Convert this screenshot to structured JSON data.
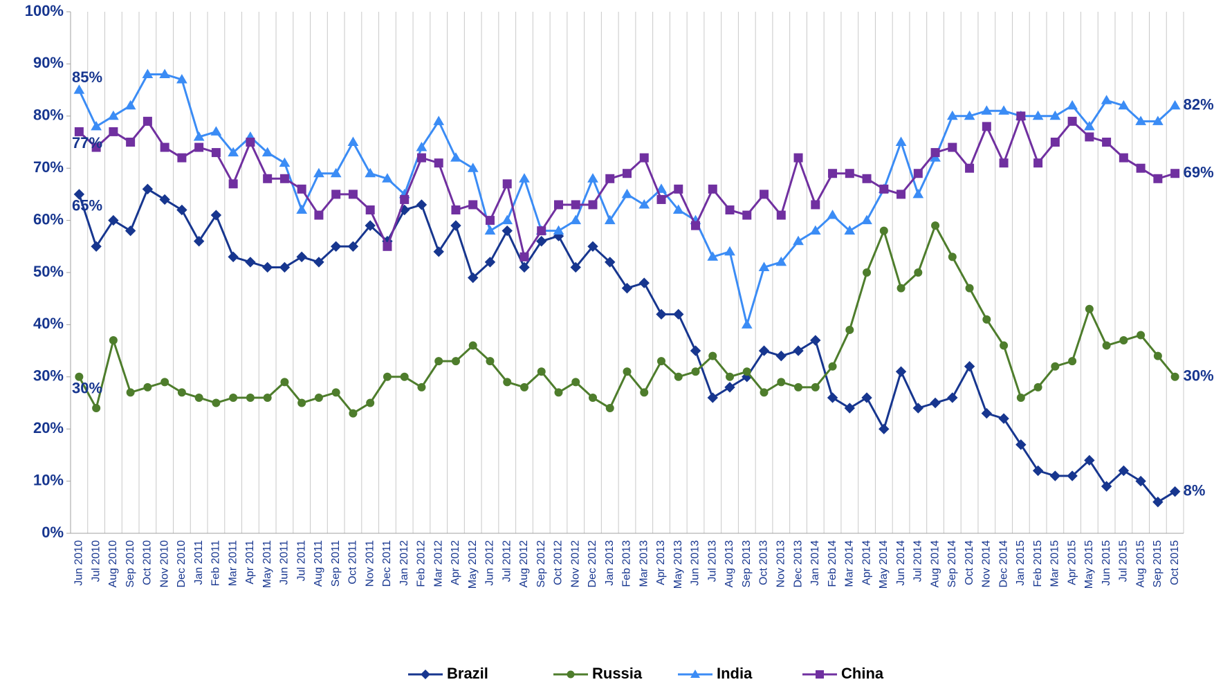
{
  "chart_data": {
    "type": "line",
    "categories": [
      "Jun 2010",
      "Jul 2010",
      "Aug 2010",
      "Sep 2010",
      "Oct 2010",
      "Nov 2010",
      "Dec 2010",
      "Jan 2011",
      "Feb 2011",
      "Mar 2011",
      "Apr 2011",
      "May 2011",
      "Jun 2011",
      "Jul 2011",
      "Aug 2011",
      "Sep 2011",
      "Oct 2011",
      "Nov 2011",
      "Dec 2011",
      "Jan 2012",
      "Feb 2012",
      "Mar 2012",
      "Apr 2012",
      "May 2012",
      "Jun 2012",
      "Jul 2012",
      "Aug 2012",
      "Sep 2012",
      "Oct 2012",
      "Nov 2012",
      "Dec 2012",
      "Jan 2013",
      "Feb 2013",
      "Mar 2013",
      "Apr 2013",
      "May 2013",
      "Jun 2013",
      "Jul 2013",
      "Aug 2013",
      "Sep 2013",
      "Oct 2013",
      "Nov 2013",
      "Dec 2013",
      "Jan 2014",
      "Feb 2014",
      "Mar 2014",
      "Apr 2014",
      "May 2014",
      "Jun 2014",
      "Jul 2014",
      "Aug 2014",
      "Sep 2014",
      "Oct 2014",
      "Nov 2014",
      "Dec 2014",
      "Jan 2015",
      "Feb 2015",
      "Mar 2015",
      "Apr 2015",
      "May 2015",
      "Jun 2015",
      "Jul 2015",
      "Aug 2015",
      "Sep 2015",
      "Oct 2015"
    ],
    "series": [
      {
        "name": "Brazil",
        "color": "#17368f",
        "marker": "diamond",
        "values": [
          65,
          55,
          60,
          58,
          66,
          64,
          62,
          56,
          61,
          53,
          52,
          51,
          51,
          53,
          52,
          55,
          55,
          59,
          56,
          62,
          63,
          54,
          59,
          49,
          52,
          58,
          51,
          56,
          57,
          51,
          55,
          52,
          47,
          48,
          42,
          42,
          35,
          26,
          28,
          30,
          35,
          34,
          35,
          37,
          26,
          24,
          26,
          20,
          31,
          24,
          25,
          26,
          32,
          23,
          22,
          17,
          12,
          11,
          11,
          14,
          9,
          12,
          10,
          6,
          8
        ],
        "value_labels": [
          "65%",
          null,
          null,
          null,
          null,
          null,
          null,
          null,
          null,
          null,
          null,
          null,
          null,
          null,
          null,
          null,
          null,
          null,
          null,
          null,
          null,
          null,
          null,
          null,
          null,
          null,
          null,
          null,
          null,
          null,
          null,
          null,
          null,
          null,
          null,
          null,
          null,
          null,
          null,
          null,
          null,
          null,
          null,
          null,
          null,
          null,
          null,
          null,
          null,
          null,
          null,
          null,
          null,
          null,
          null,
          null,
          null,
          null,
          null,
          null,
          null,
          null,
          null,
          null,
          "8%"
        ]
      },
      {
        "name": "Russia",
        "color": "#4e7d2c",
        "marker": "circle",
        "values": [
          30,
          24,
          37,
          27,
          28,
          29,
          27,
          26,
          25,
          26,
          26,
          26,
          29,
          25,
          26,
          27,
          23,
          25,
          30,
          30,
          28,
          33,
          33,
          36,
          33,
          29,
          28,
          31,
          27,
          29,
          26,
          24,
          31,
          27,
          33,
          30,
          31,
          34,
          30,
          31,
          27,
          29,
          28,
          28,
          32,
          39,
          50,
          58,
          47,
          50,
          59,
          53,
          47,
          41,
          36,
          26,
          28,
          32,
          33,
          43,
          36,
          37,
          38,
          34,
          30
        ],
        "value_labels": [
          "30%",
          null,
          null,
          null,
          null,
          null,
          null,
          null,
          null,
          null,
          null,
          null,
          null,
          null,
          null,
          null,
          null,
          null,
          null,
          null,
          null,
          null,
          null,
          null,
          null,
          null,
          null,
          null,
          null,
          null,
          null,
          null,
          null,
          null,
          null,
          null,
          null,
          null,
          null,
          null,
          null,
          null,
          null,
          null,
          null,
          null,
          null,
          null,
          null,
          null,
          null,
          null,
          null,
          null,
          null,
          null,
          null,
          null,
          null,
          null,
          null,
          null,
          null,
          null,
          "30%"
        ]
      },
      {
        "name": "India",
        "color": "#3b8cf5",
        "marker": "triangle",
        "values": [
          85,
          78,
          80,
          82,
          88,
          88,
          87,
          76,
          77,
          73,
          76,
          73,
          71,
          62,
          69,
          69,
          75,
          69,
          68,
          65,
          74,
          79,
          72,
          70,
          58,
          60,
          68,
          58,
          58,
          60,
          68,
          60,
          65,
          63,
          66,
          62,
          60,
          53,
          54,
          40,
          51,
          52,
          56,
          58,
          61,
          58,
          60,
          66,
          75,
          65,
          72,
          80,
          80,
          81,
          81,
          80,
          80,
          80,
          82,
          78,
          83,
          82,
          79,
          79,
          82
        ],
        "value_labels": [
          "85%",
          null,
          null,
          null,
          null,
          null,
          null,
          null,
          null,
          null,
          null,
          null,
          null,
          null,
          null,
          null,
          null,
          null,
          null,
          null,
          null,
          null,
          null,
          null,
          null,
          null,
          null,
          null,
          null,
          null,
          null,
          null,
          null,
          null,
          null,
          null,
          null,
          null,
          null,
          null,
          null,
          null,
          null,
          null,
          null,
          null,
          null,
          null,
          null,
          null,
          null,
          null,
          null,
          null,
          null,
          null,
          null,
          null,
          null,
          null,
          null,
          null,
          null,
          null,
          "82%"
        ]
      },
      {
        "name": "China",
        "color": "#7030a0",
        "marker": "square",
        "values": [
          77,
          74,
          77,
          75,
          79,
          74,
          72,
          74,
          73,
          67,
          75,
          68,
          68,
          66,
          61,
          65,
          65,
          62,
          55,
          64,
          72,
          71,
          62,
          63,
          60,
          67,
          53,
          58,
          63,
          63,
          63,
          68,
          69,
          72,
          64,
          66,
          59,
          66,
          62,
          61,
          65,
          61,
          72,
          63,
          69,
          69,
          68,
          66,
          65,
          69,
          73,
          74,
          70,
          78,
          71,
          80,
          71,
          75,
          79,
          76,
          75,
          72,
          70,
          68,
          69
        ],
        "value_labels": [
          "77%",
          null,
          null,
          null,
          null,
          null,
          null,
          null,
          null,
          null,
          null,
          null,
          null,
          null,
          null,
          null,
          null,
          null,
          null,
          null,
          null,
          null,
          null,
          null,
          null,
          null,
          null,
          null,
          null,
          null,
          null,
          null,
          null,
          null,
          null,
          null,
          null,
          null,
          null,
          null,
          null,
          null,
          null,
          null,
          null,
          null,
          null,
          null,
          null,
          null,
          null,
          null,
          null,
          null,
          null,
          null,
          null,
          null,
          null,
          null,
          null,
          null,
          null,
          null,
          "69%"
        ]
      }
    ],
    "ylim": [
      0,
      100
    ],
    "yticks": [
      {
        "value": 0,
        "label": "0%"
      },
      {
        "value": 10,
        "label": "10%"
      },
      {
        "value": 20,
        "label": "20%"
      },
      {
        "value": 30,
        "label": "30%"
      },
      {
        "value": 40,
        "label": "40%"
      },
      {
        "value": 50,
        "label": "50%"
      },
      {
        "value": 60,
        "label": "60%"
      },
      {
        "value": 70,
        "label": "70%"
      },
      {
        "value": 80,
        "label": "80%"
      },
      {
        "value": 90,
        "label": "90%"
      },
      {
        "value": 100,
        "label": "100%"
      }
    ],
    "grid": true,
    "legend": "bottom"
  }
}
